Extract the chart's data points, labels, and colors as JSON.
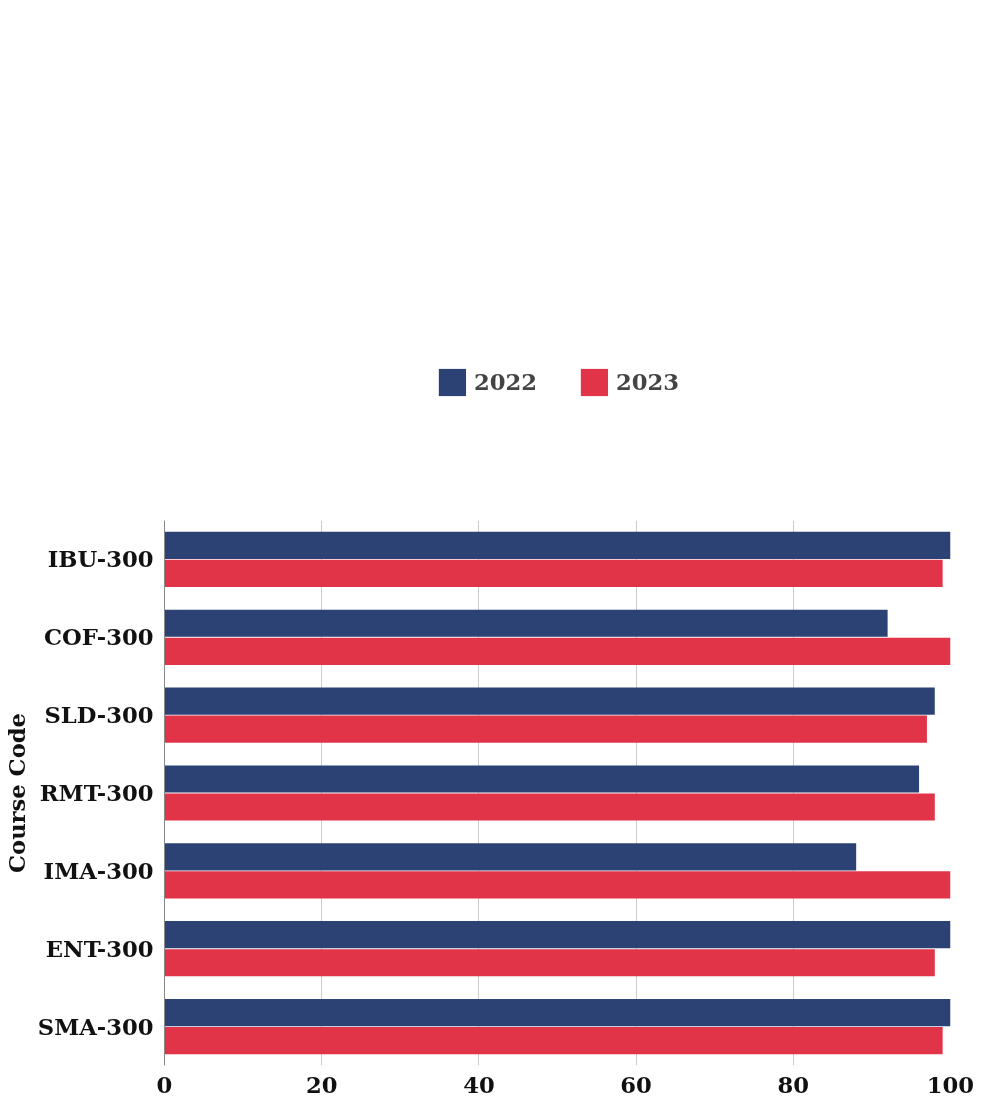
{
  "chart_data": {
    "type": "bar",
    "orientation": "horizontal",
    "ylabel": "Course Code",
    "categories": [
      "IBU-300",
      "COF-300",
      "SLD-300",
      "RMT-300",
      "IMA-300",
      "ENT-300",
      "SMA-300"
    ],
    "series": [
      {
        "name": "2022",
        "color": "#2c4275",
        "values": [
          100,
          92,
          98,
          96,
          88,
          100,
          100
        ]
      },
      {
        "name": "2023",
        "color": "#e23448",
        "values": [
          99,
          100,
          97,
          98,
          100,
          98,
          99
        ]
      }
    ],
    "xlim": [
      0,
      100
    ],
    "xticks": [
      0,
      20,
      40,
      60,
      80,
      100
    ],
    "grid": "x",
    "legend": "top"
  }
}
